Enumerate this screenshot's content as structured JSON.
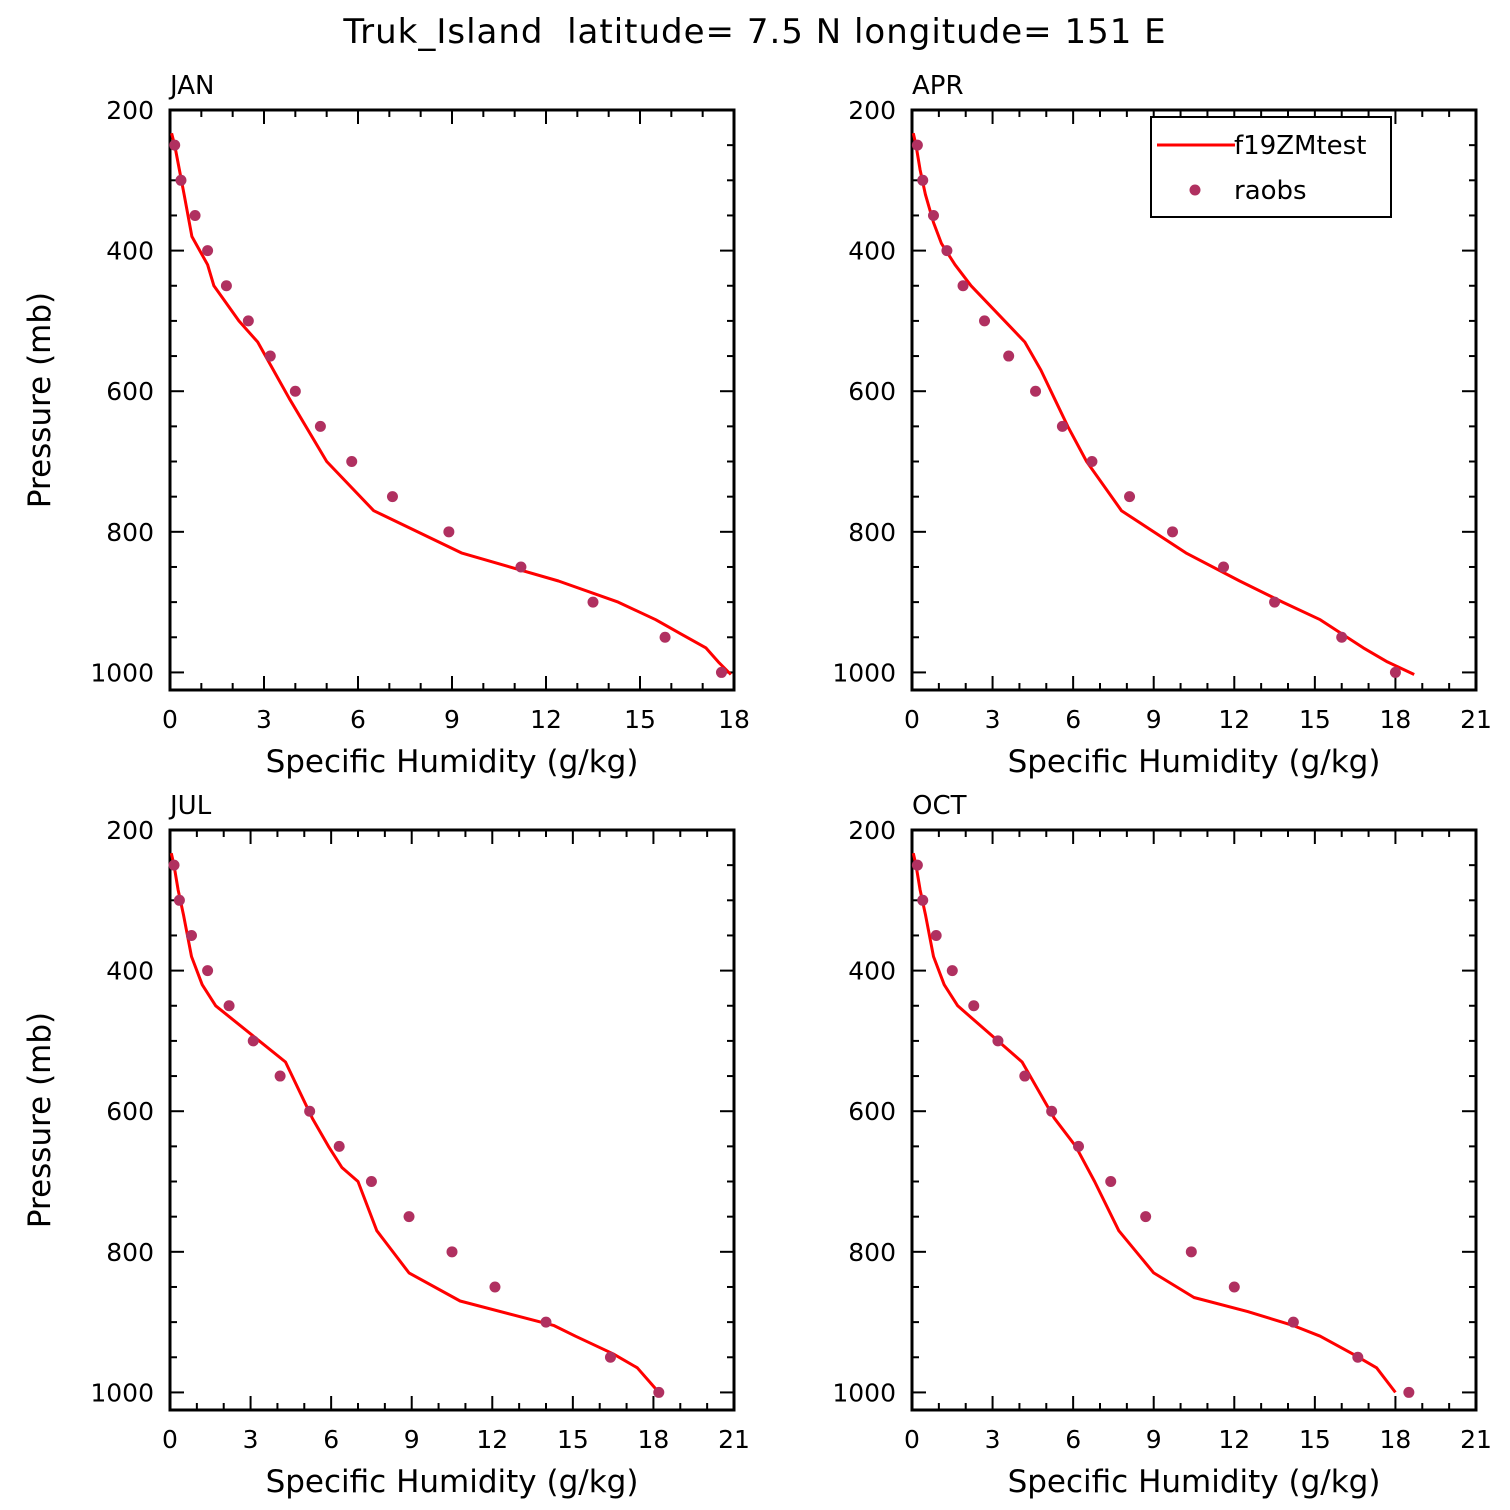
{
  "figure": {
    "title": "Truk_Island  latitude= 7.5 N longitude= 151 E",
    "line_color": "#ff0000",
    "point_color": "#b03060",
    "legend": {
      "line_label": "f19ZMtest",
      "point_label": "raobs",
      "position": "top-right of APR panel"
    }
  },
  "chart_data": [
    {
      "panel": "JAN",
      "type": "line",
      "xlabel": "Specific Humidity (g/kg)",
      "ylabel": "Pressure (mb)",
      "xlim": [
        0,
        18
      ],
      "xticks": [
        0,
        3,
        6,
        9,
        12,
        15,
        18
      ],
      "ylim": [
        1000,
        200
      ],
      "ylim_range": [
        1025,
        200
      ],
      "yticks": [
        200,
        400,
        600,
        800,
        1000
      ],
      "y_reversed": true,
      "grid": false,
      "series": [
        {
          "name": "f19ZMtest",
          "kind": "line",
          "x": [
            0.05,
            0.15,
            0.3,
            0.45,
            0.7,
            1.2,
            1.4,
            2.2,
            2.8,
            3.8,
            5.0,
            6.5,
            9.3,
            12.4,
            14.3,
            15.5,
            16.3,
            17.1,
            17.5,
            17.9
          ],
          "y": [
            233,
            250,
            285,
            320,
            380,
            420,
            450,
            500,
            530,
            610,
            700,
            770,
            830,
            870,
            900,
            925,
            945,
            965,
            985,
            1003
          ]
        },
        {
          "name": "raobs",
          "kind": "scatter",
          "x": [
            0.15,
            0.35,
            0.8,
            1.2,
            1.8,
            2.5,
            3.2,
            4.0,
            4.8,
            5.8,
            7.1,
            8.9,
            11.2,
            13.5,
            15.8,
            17.6
          ],
          "y": [
            250,
            300,
            350,
            400,
            450,
            500,
            550,
            600,
            650,
            700,
            750,
            800,
            850,
            900,
            950,
            1000
          ]
        }
      ]
    },
    {
      "panel": "APR",
      "type": "line",
      "xlabel": "Specific Humidity (g/kg)",
      "ylabel": "",
      "xlim": [
        0,
        21
      ],
      "xticks": [
        0,
        3,
        6,
        9,
        12,
        15,
        18,
        21
      ],
      "ylim": [
        1000,
        200
      ],
      "ylim_range": [
        1025,
        200
      ],
      "yticks": [
        200,
        400,
        600,
        800,
        1000
      ],
      "y_reversed": true,
      "grid": false,
      "series": [
        {
          "name": "f19ZMtest",
          "kind": "line",
          "x": [
            0.05,
            0.15,
            0.3,
            0.5,
            0.8,
            1.1,
            1.6,
            2.2,
            4.2,
            4.8,
            5.3,
            5.8,
            6.5,
            7.8,
            10.2,
            12.2,
            13.8,
            15.2,
            16.0,
            16.8,
            17.7,
            18.7
          ],
          "y": [
            233,
            250,
            285,
            320,
            360,
            390,
            420,
            450,
            530,
            570,
            610,
            650,
            700,
            770,
            830,
            870,
            900,
            925,
            945,
            965,
            985,
            1003
          ]
        },
        {
          "name": "raobs",
          "kind": "scatter",
          "x": [
            0.2,
            0.4,
            0.8,
            1.3,
            1.9,
            2.7,
            3.6,
            4.6,
            5.6,
            6.7,
            8.1,
            9.7,
            11.6,
            13.5,
            16.0,
            18.0
          ],
          "y": [
            250,
            300,
            350,
            400,
            450,
            500,
            550,
            600,
            650,
            700,
            750,
            800,
            850,
            900,
            950,
            1000
          ]
        }
      ]
    },
    {
      "panel": "JUL",
      "type": "line",
      "xlabel": "Specific Humidity (g/kg)",
      "ylabel": "Pressure (mb)",
      "xlim": [
        0,
        21
      ],
      "xticks": [
        0,
        3,
        6,
        9,
        12,
        15,
        18,
        21
      ],
      "ylim": [
        1000,
        200
      ],
      "ylim_range": [
        1025,
        200
      ],
      "yticks": [
        200,
        400,
        600,
        800,
        1000
      ],
      "y_reversed": true,
      "grid": false,
      "series": [
        {
          "name": "f19ZMtest",
          "kind": "line",
          "x": [
            0.05,
            0.15,
            0.3,
            0.5,
            0.8,
            1.2,
            1.7,
            4.3,
            4.8,
            5.3,
            5.9,
            6.4,
            7.0,
            7.7,
            8.9,
            10.8,
            12.8,
            14.3,
            15.1,
            16.5,
            17.4,
            18.2
          ],
          "y": [
            233,
            250,
            285,
            320,
            380,
            420,
            450,
            530,
            570,
            610,
            650,
            680,
            700,
            770,
            830,
            870,
            890,
            905,
            920,
            945,
            965,
            1000
          ]
        },
        {
          "name": "raobs",
          "kind": "scatter",
          "x": [
            0.15,
            0.35,
            0.8,
            1.4,
            2.2,
            3.1,
            4.1,
            5.2,
            6.3,
            7.5,
            8.9,
            10.5,
            12.1,
            14.0,
            16.4,
            18.2
          ],
          "y": [
            250,
            300,
            350,
            400,
            450,
            500,
            550,
            600,
            650,
            700,
            750,
            800,
            850,
            900,
            950,
            1000
          ]
        }
      ]
    },
    {
      "panel": "OCT",
      "type": "line",
      "xlabel": "Specific Humidity (g/kg)",
      "ylabel": "",
      "xlim": [
        0,
        21
      ],
      "xticks": [
        0,
        3,
        6,
        9,
        12,
        15,
        18,
        21
      ],
      "ylim": [
        1000,
        200
      ],
      "ylim_range": [
        1025,
        200
      ],
      "yticks": [
        200,
        400,
        600,
        800,
        1000
      ],
      "y_reversed": true,
      "grid": false,
      "series": [
        {
          "name": "f19ZMtest",
          "kind": "line",
          "x": [
            0.05,
            0.15,
            0.3,
            0.5,
            0.8,
            1.2,
            1.7,
            4.1,
            4.7,
            5.3,
            6.1,
            6.8,
            7.7,
            9.0,
            10.5,
            12.5,
            14.2,
            15.2,
            16.4,
            17.3,
            18.0
          ],
          "y": [
            233,
            250,
            285,
            320,
            380,
            420,
            450,
            530,
            570,
            610,
            650,
            700,
            770,
            830,
            865,
            885,
            905,
            920,
            945,
            965,
            1000
          ]
        },
        {
          "name": "raobs",
          "kind": "scatter",
          "x": [
            0.2,
            0.4,
            0.9,
            1.5,
            2.3,
            3.2,
            4.2,
            5.2,
            6.2,
            7.4,
            8.7,
            10.4,
            12.0,
            14.2,
            16.6,
            18.5
          ],
          "y": [
            250,
            300,
            350,
            400,
            450,
            500,
            550,
            600,
            650,
            700,
            750,
            800,
            850,
            900,
            950,
            1000
          ]
        }
      ]
    }
  ]
}
